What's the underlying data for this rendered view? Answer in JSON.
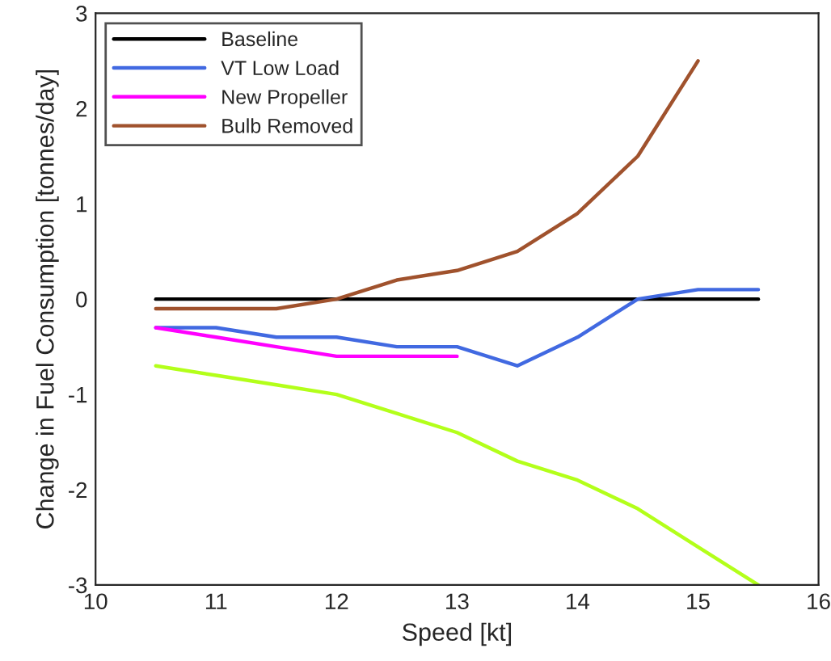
{
  "chart_data": {
    "type": "line",
    "xlabel": "Speed [kt]",
    "ylabel": "Change in Fuel Consumption [tonnes/day]",
    "x": [
      10.5,
      11,
      11.5,
      12,
      12.5,
      13,
      13.5,
      14,
      14.5,
      15,
      15.5
    ],
    "series": [
      {
        "name": "Baseline",
        "color": "#000000",
        "values": [
          0,
          0,
          0,
          0,
          0,
          0,
          0,
          0,
          0,
          0,
          0
        ]
      },
      {
        "name": "VT Low Load",
        "color": "#4169e1",
        "values": [
          -0.3,
          -0.3,
          -0.4,
          -0.4,
          -0.5,
          -0.5,
          -0.7,
          -0.4,
          0.0,
          0.1,
          0.1
        ]
      },
      {
        "name": "New Propeller",
        "color": "#ff00ff",
        "values": [
          -0.3,
          -0.4,
          -0.5,
          -0.6,
          -0.6,
          -0.6,
          null,
          null,
          null,
          null,
          null
        ]
      },
      {
        "color": "#b3ff1a",
        "values": [
          -0.7,
          -0.8,
          -0.9,
          -1.0,
          -1.2,
          -1.4,
          -1.7,
          -1.9,
          -2.2,
          -2.6,
          -3.0
        ]
      },
      {
        "name": "Bulb Removed",
        "color": "#a0522d",
        "values": [
          -0.1,
          -0.1,
          -0.1,
          0.0,
          0.2,
          0.3,
          0.5,
          0.9,
          1.5,
          2.5,
          null
        ]
      }
    ],
    "xlim": [
      10,
      16
    ],
    "xticks": [
      10,
      11,
      12,
      13,
      14,
      15,
      16
    ],
    "ylim": [
      -3,
      3
    ],
    "yticks": [
      -3,
      -2,
      -1,
      0,
      1,
      2,
      3
    ],
    "grid": false,
    "legend": "top left",
    "line_style": "solid",
    "marker": "none"
  }
}
